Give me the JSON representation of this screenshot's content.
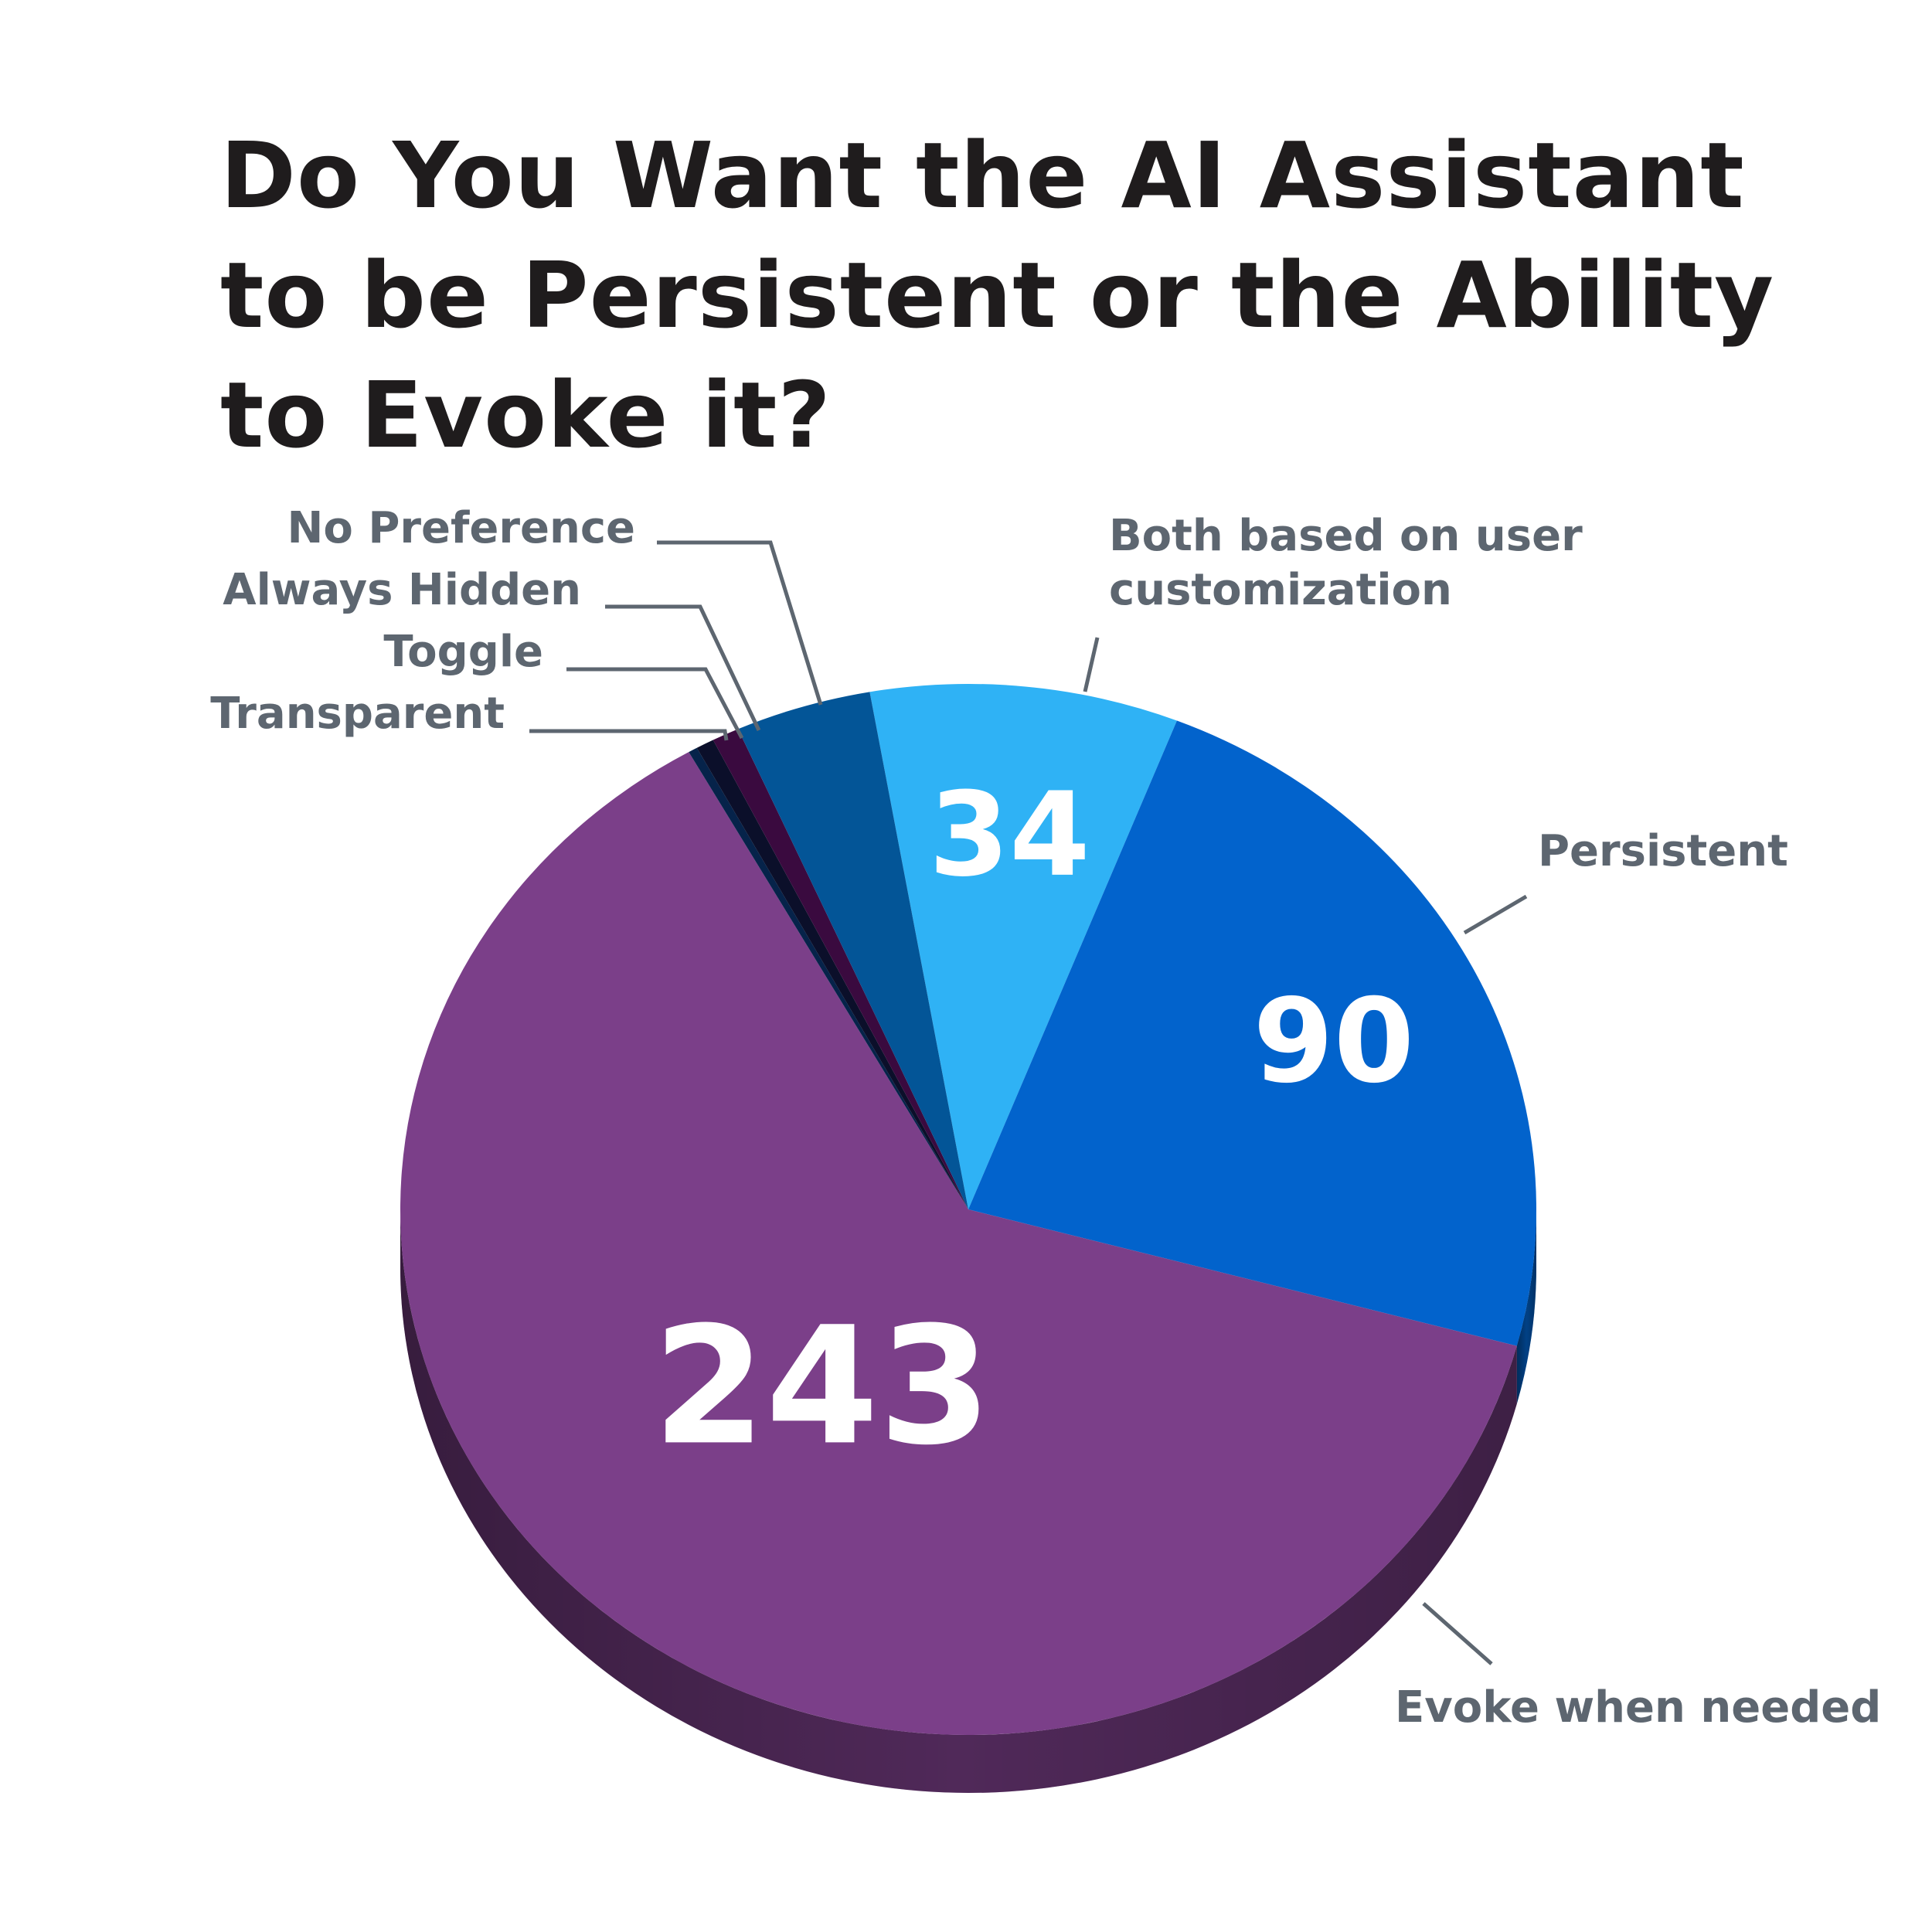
{
  "chart_data": {
    "type": "pie",
    "title": "Do You Want the AI Assistant to be Persistent or the Ability to Evoke it?",
    "title_lines": [
      "Do You Want the AI Assistant",
      "to be Persistent or the Ability",
      "to Evoke it?"
    ],
    "slices": [
      {
        "label": "Both based on user customization",
        "label_lines": [
          "Both based on user",
          "customization"
        ],
        "value": 34,
        "value_label": "34",
        "color": "#2fb2f5"
      },
      {
        "label": "Persistent",
        "label_lines": [
          "Persistent"
        ],
        "value": 90,
        "value_label": "90",
        "color": "#0263cc"
      },
      {
        "label": "Evoke when needed",
        "label_lines": [
          "Evoke when needed"
        ],
        "value": 243,
        "value_label": "243",
        "color": "#7b3f89"
      },
      {
        "label": "Transparent",
        "label_lines": [
          "Transparent"
        ],
        "value": 1,
        "value_label": "",
        "color": "#06234a"
      },
      {
        "label": "Toggle",
        "label_lines": [
          "Toggle"
        ],
        "value": 2,
        "value_label": "",
        "color": "#0b0f2a"
      },
      {
        "label": "Always Hidden",
        "label_lines": [
          "Always Hidden"
        ],
        "value": 3,
        "value_label": "",
        "color": "#3a0a3f"
      },
      {
        "label": "No Preference",
        "label_lines": [
          "No Preference"
        ],
        "value": 15,
        "value_label": "",
        "color": "#035597"
      }
    ],
    "legend": "none",
    "style": "3d-tilted"
  }
}
